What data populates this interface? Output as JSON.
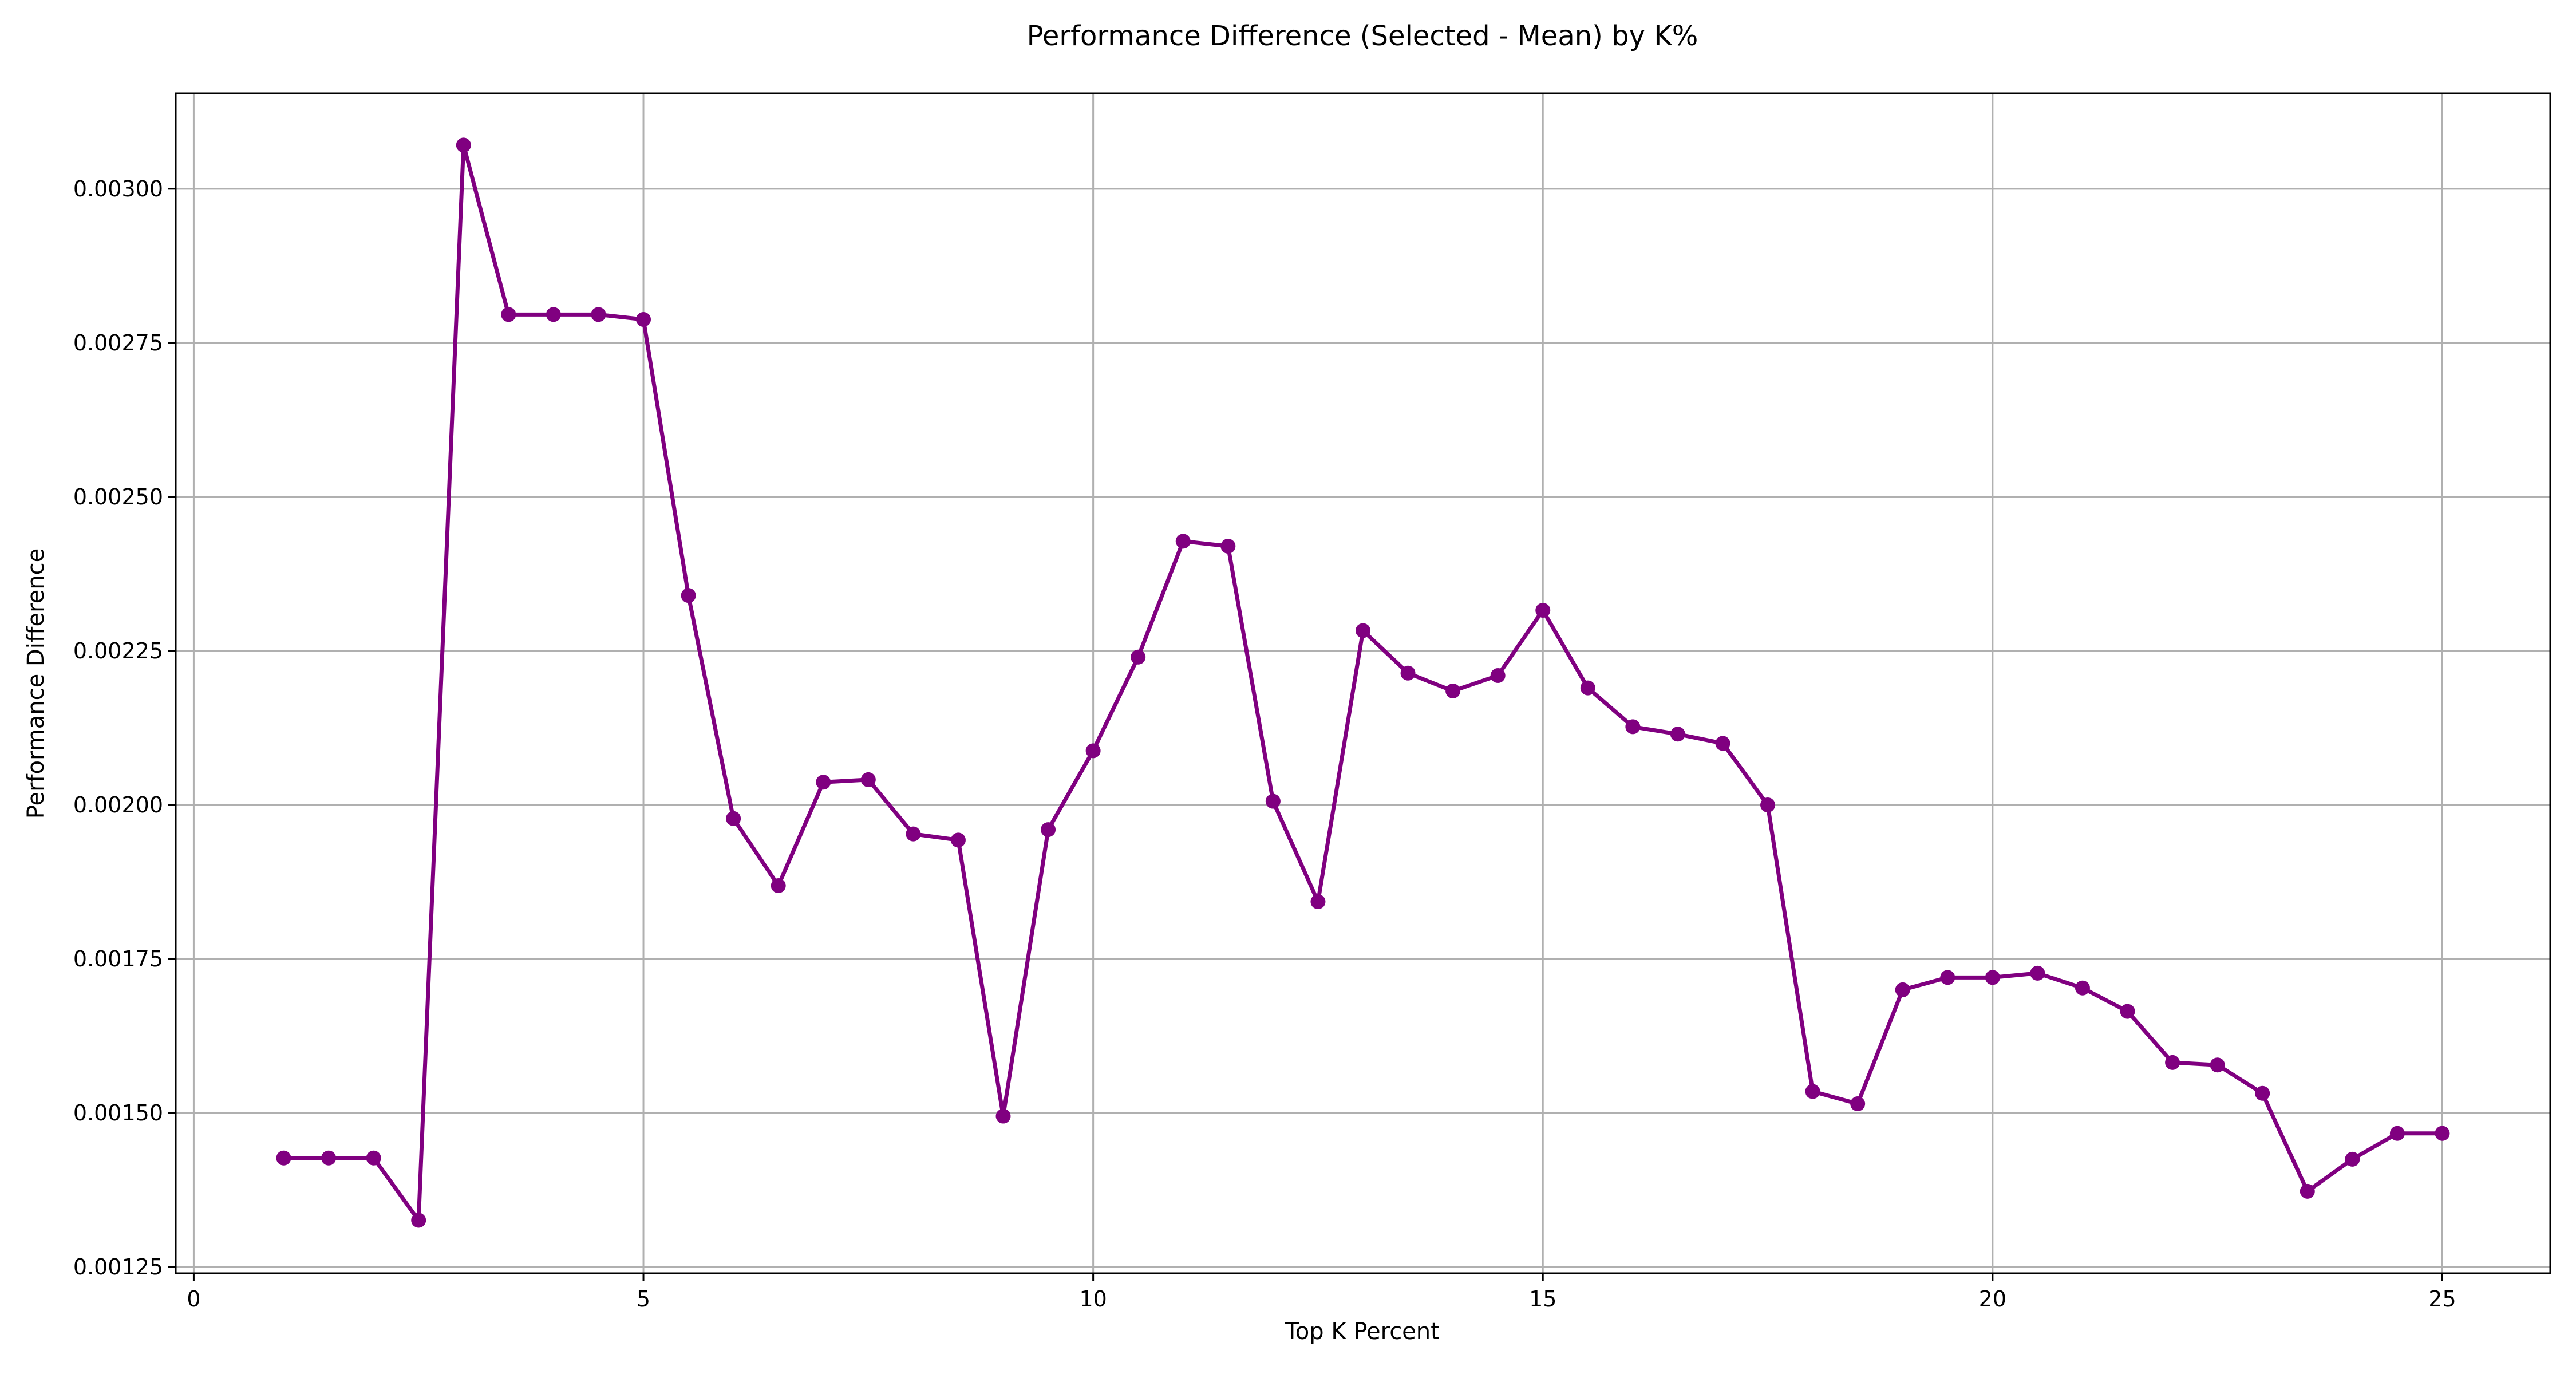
{
  "chart_data": {
    "type": "line",
    "title": "Performance Difference (Selected - Mean) by K%",
    "xlabel": "Top K Percent",
    "ylabel": "Performance Difference",
    "xlim": [
      -0.2,
      26.2
    ],
    "ylim": [
      0.00124,
      0.003155
    ],
    "xticks": [
      0,
      5,
      10,
      15,
      20,
      25
    ],
    "xtick_labels": [
      "0",
      "5",
      "10",
      "15",
      "20",
      "25"
    ],
    "yticks": [
      0.00125,
      0.0015,
      0.00175,
      0.002,
      0.00225,
      0.0025,
      0.00275,
      0.003
    ],
    "ytick_labels": [
      "0.00125",
      "0.00150",
      "0.00175",
      "0.00200",
      "0.00225",
      "0.00250",
      "0.00275",
      "0.00300"
    ],
    "grid": true,
    "line_color": "#800080",
    "series": [
      {
        "x": [
          1,
          1.5,
          2,
          2.5,
          3,
          3.5,
          4,
          4.5,
          5,
          5.5,
          6,
          6.5,
          7,
          7.5,
          8,
          8.5,
          9,
          9.5,
          10,
          10.5,
          11,
          11.5,
          12,
          12.5,
          13,
          13.5,
          14,
          14.5,
          15,
          15.5,
          16,
          16.5,
          17,
          17.5,
          18,
          18.5,
          19,
          19.5,
          20,
          20.5,
          21,
          21.5,
          22,
          22.5,
          23,
          23.5,
          24,
          24.5,
          25
        ],
        "y": [
          0.001427,
          0.001427,
          0.001427,
          0.001326,
          0.003071,
          0.002796,
          0.002796,
          0.002796,
          0.002788,
          0.00234,
          0.001978,
          0.001869,
          0.002037,
          0.002041,
          0.001953,
          0.001943,
          0.001495,
          0.00196,
          0.002088,
          0.00224,
          0.002428,
          0.00242,
          0.002006,
          0.001843,
          0.002283,
          0.002214,
          0.002185,
          0.00221,
          0.002316,
          0.00219,
          0.002127,
          0.002115,
          0.0021,
          0.002,
          0.001535,
          0.001515,
          0.0017,
          0.00172,
          0.00172,
          0.001727,
          0.001703,
          0.001665,
          0.001582,
          0.001578,
          0.001532,
          0.001373,
          0.001425,
          0.001467,
          0.001467
        ]
      }
    ]
  }
}
